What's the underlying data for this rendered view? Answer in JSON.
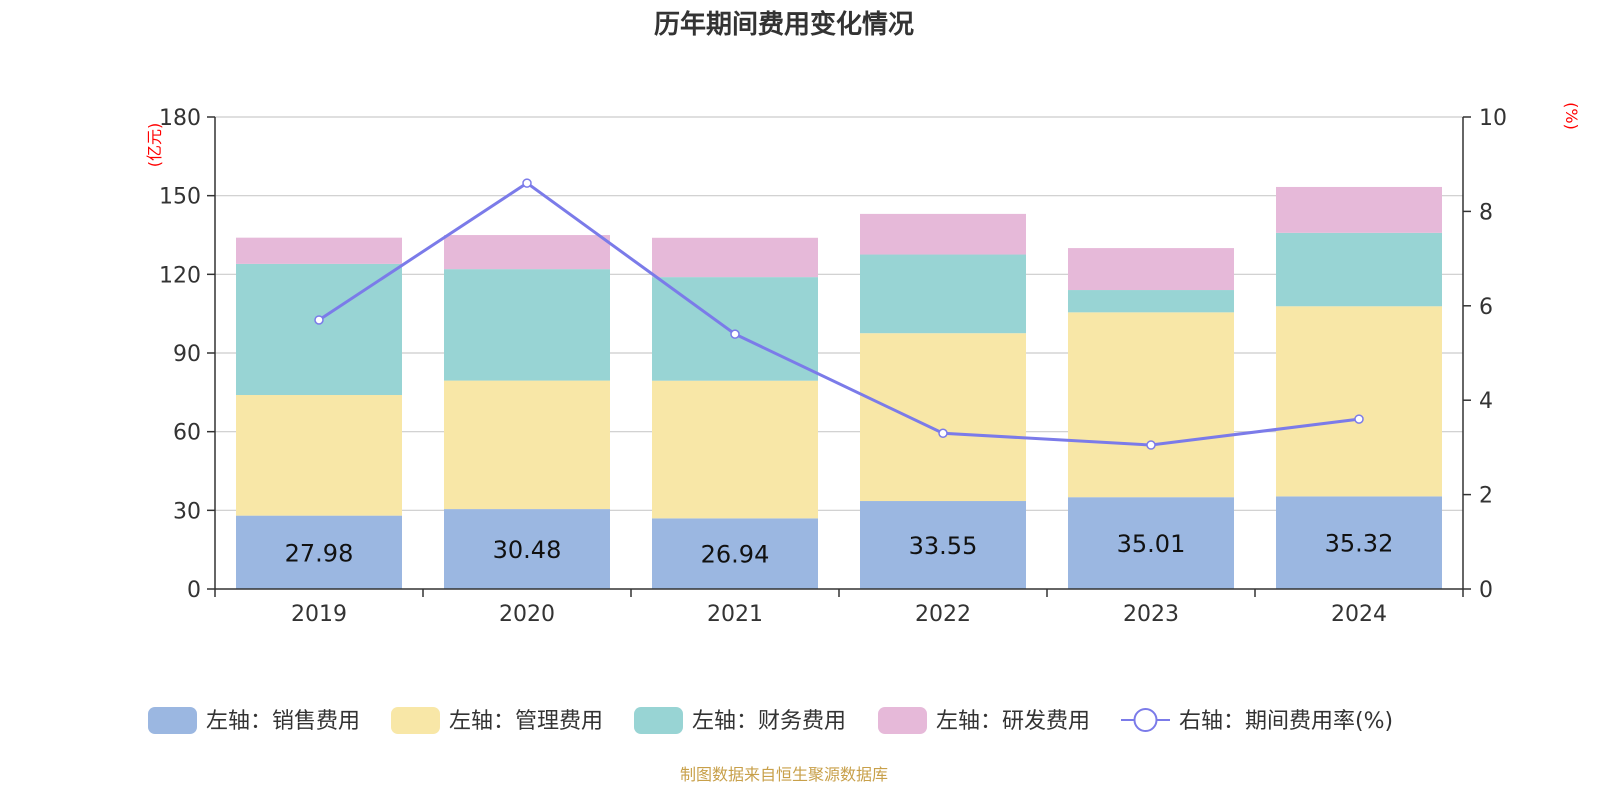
{
  "chart_data": {
    "type": "bar",
    "title": "历年期间费用变化情况",
    "categories": [
      "2019",
      "2020",
      "2021",
      "2022",
      "2023",
      "2024"
    ],
    "left_axis": {
      "label": "(亿元)",
      "ylim": [
        0,
        180
      ],
      "ticks": [
        0,
        30,
        60,
        90,
        120,
        150,
        180
      ]
    },
    "right_axis": {
      "label": "(%)",
      "ylim": [
        0,
        10
      ],
      "ticks": [
        0,
        2,
        4,
        6,
        8,
        10
      ]
    },
    "series": [
      {
        "name": "左轴：销售费用",
        "kind": "bar",
        "axis": "left",
        "color": "#9bb7e1",
        "values": [
          27.98,
          30.48,
          26.94,
          33.55,
          35.01,
          35.32
        ],
        "show_labels": true
      },
      {
        "name": "左轴：管理费用",
        "kind": "bar",
        "axis": "left",
        "color": "#f8e7a7",
        "values": [
          46.0,
          49.0,
          52.5,
          64.0,
          70.5,
          72.5
        ]
      },
      {
        "name": "左轴：财务费用",
        "kind": "bar",
        "axis": "left",
        "color": "#98d4d4",
        "values": [
          50.0,
          42.5,
          39.5,
          30.0,
          8.5,
          28.0
        ]
      },
      {
        "name": "左轴：研发费用",
        "kind": "bar",
        "axis": "left",
        "color": "#e6b9d9",
        "values": [
          10.0,
          13.0,
          15.0,
          15.5,
          16.0,
          17.5
        ]
      },
      {
        "name": "右轴：期间费用率(%)",
        "kind": "line",
        "axis": "right",
        "color": "#7b7be9",
        "values": [
          5.7,
          8.6,
          5.4,
          3.3,
          3.05,
          3.6
        ]
      }
    ],
    "grid": true,
    "legend_position": "bottom"
  },
  "footer": {
    "source": "制图数据来自恒生聚源数据库"
  },
  "colors": {
    "title": "#333333",
    "axis_unit": "#ff0000",
    "source": "#c8a04a",
    "grid": "#cccccc",
    "axis": "#333333"
  }
}
